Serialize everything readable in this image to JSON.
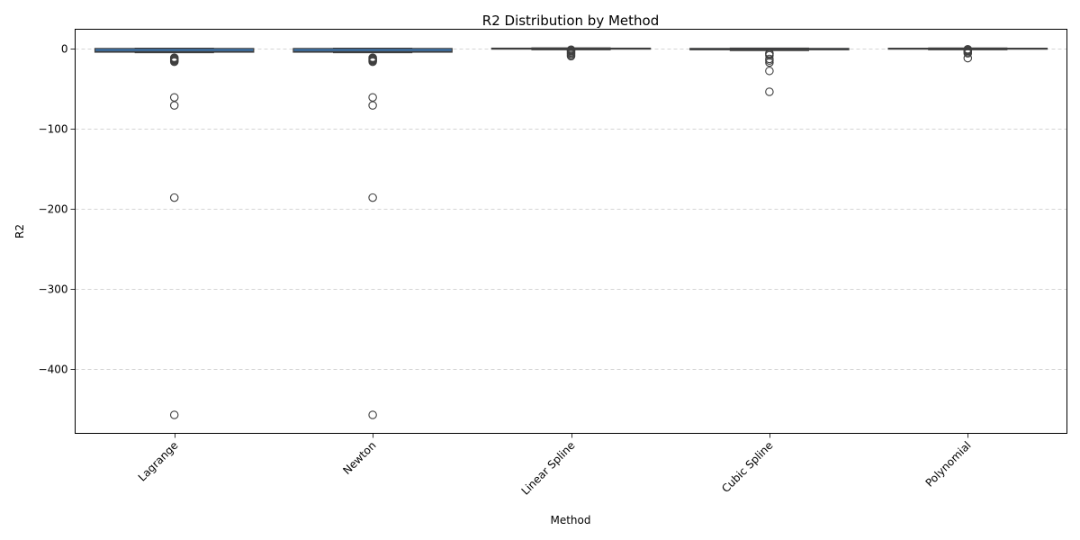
{
  "chart_data": {
    "type": "box",
    "title": "R2 Distribution by Method",
    "xlabel": "Method",
    "ylabel": "R2",
    "ylim": [
      -480,
      24
    ],
    "yticks": [
      {
        "value": 0,
        "label": "0"
      },
      {
        "value": -100,
        "label": "−100"
      },
      {
        "value": -200,
        "label": "−200"
      },
      {
        "value": -300,
        "label": "−300"
      },
      {
        "value": -400,
        "label": "−400"
      }
    ],
    "grid": {
      "y": true,
      "style": "dashed"
    },
    "xtick_rotation": 45,
    "box_color": "#3b75af",
    "categories": [
      "Lagrange",
      "Newton",
      "Linear Spline",
      "Cubic Spline",
      "Polynomial"
    ],
    "boxes": [
      {
        "name": "Lagrange",
        "whisker_low": -5.2,
        "q1": -4.6,
        "median": -3.8,
        "q3": 0.0,
        "whisker_high": 0.3,
        "outliers": [
          -11.5,
          -12.5,
          -13.5,
          -14.5,
          -15.5,
          -16.5,
          -61.0,
          -71.0,
          -186.0,
          -457.0
        ]
      },
      {
        "name": "Newton",
        "whisker_low": -5.2,
        "q1": -4.6,
        "median": -3.8,
        "q3": 0.0,
        "whisker_high": 0.3,
        "outliers": [
          -11.5,
          -12.5,
          -13.5,
          -14.5,
          -15.5,
          -16.5,
          -61.0,
          -71.0,
          -186.0,
          -457.0
        ]
      },
      {
        "name": "Linear Spline",
        "whisker_low": -1.5,
        "q1": -0.8,
        "median": -0.2,
        "q3": 0.4,
        "whisker_high": 0.7,
        "outliers": [
          -1.5,
          -2.5,
          -3.5,
          -5.0,
          -6.5,
          -8.0,
          -9.5
        ]
      },
      {
        "name": "Cubic Spline",
        "whisker_low": -2.5,
        "q1": -1.6,
        "median": -1.0,
        "q3": 0.1,
        "whisker_high": 0.4,
        "outliers": [
          -6.0,
          -7.0,
          -8.5,
          -13.0,
          -15.0,
          -17.5,
          -28.0,
          -54.0
        ]
      },
      {
        "name": "Polynomial",
        "whisker_low": -1.5,
        "q1": -0.7,
        "median": -0.3,
        "q3": 0.3,
        "whisker_high": 0.6,
        "outliers": [
          -1.0,
          -2.0,
          -3.0,
          -4.5,
          -6.0,
          -12.0
        ]
      }
    ]
  }
}
